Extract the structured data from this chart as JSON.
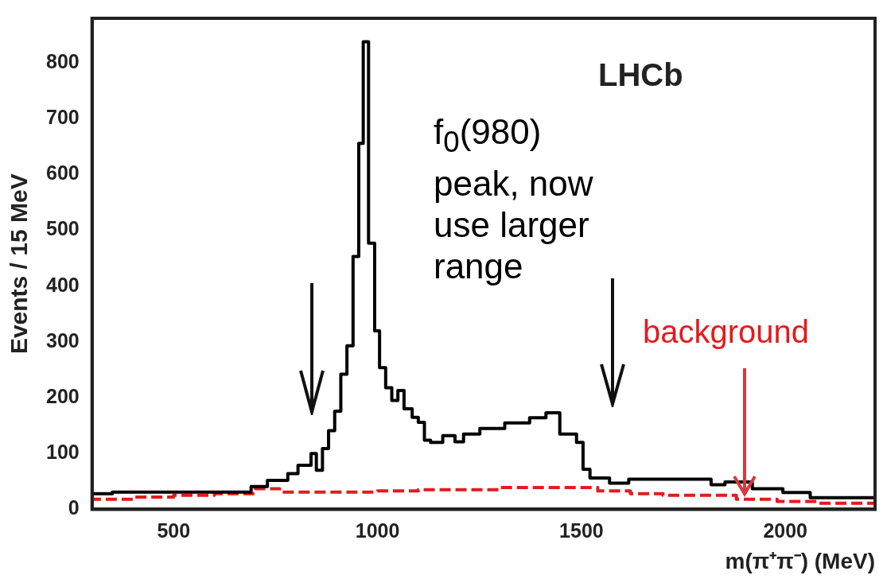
{
  "chart_data": {
    "type": "step",
    "xlabel": "m(π⁺π⁻) (MeV)",
    "ylabel": "Events / 15 MeV",
    "annotations": [
      "LHCb",
      "f$_{0}$(980) peak, now use larger range",
      {
        "text": "background",
        "x": 1900,
        "y": 25
      }
    ],
    "xlim": [
      300,
      2220
    ],
    "xticks": [
      500,
      1000,
      1500,
      2000
    ],
    "ylim": [
      0,
      880
    ],
    "yticks": [
      0,
      100,
      200,
      300,
      400,
      500,
      600,
      700,
      800
    ],
    "grid": false,
    "legend": false,
    "marker": "none",
    "series": [
      {
        "color": "#000000",
        "line_style": "solid",
        "x": [
          300,
          350,
          690,
          730,
          780,
          805,
          837,
          850,
          865,
          880,
          895,
          910,
          925,
          940,
          954,
          965,
          978,
          993,
          1005,
          1020,
          1035,
          1050,
          1065,
          1085,
          1100,
          1115,
          1130,
          1160,
          1190,
          1211,
          1251,
          1312,
          1373,
          1413,
          1447,
          1488,
          1504,
          1521,
          1569,
          1616,
          1818,
          1852,
          1919,
          1994,
          2061,
          2135,
          2220
        ],
        "values": [
          20,
          28,
          31,
          41,
          52,
          64,
          79,
          100,
          70,
          109,
          141,
          176,
          242,
          293,
          453,
          656,
          838,
          477,
          320,
          254,
          218,
          195,
          213,
          180,
          165,
          156,
          124,
          120,
          132,
          121,
          135,
          145,
          155,
          164,
          173,
          135,
          120,
          72,
          56,
          47,
          54,
          44,
          49,
          37,
          30,
          21,
          21
        ]
      },
      {
        "color": "#e41a1c",
        "line_style": "dashed",
        "x": [
          300,
          400,
          500,
          600,
          700,
          760,
          1000,
          1100,
          1300,
          1540,
          1620,
          1700,
          1880,
          1980,
          2080,
          2150,
          2220
        ],
        "values": [
          14,
          18,
          22,
          25,
          28,
          37,
          31,
          33,
          35,
          39,
          33,
          28,
          25,
          18,
          14,
          11,
          11
        ]
      }
    ]
  }
}
